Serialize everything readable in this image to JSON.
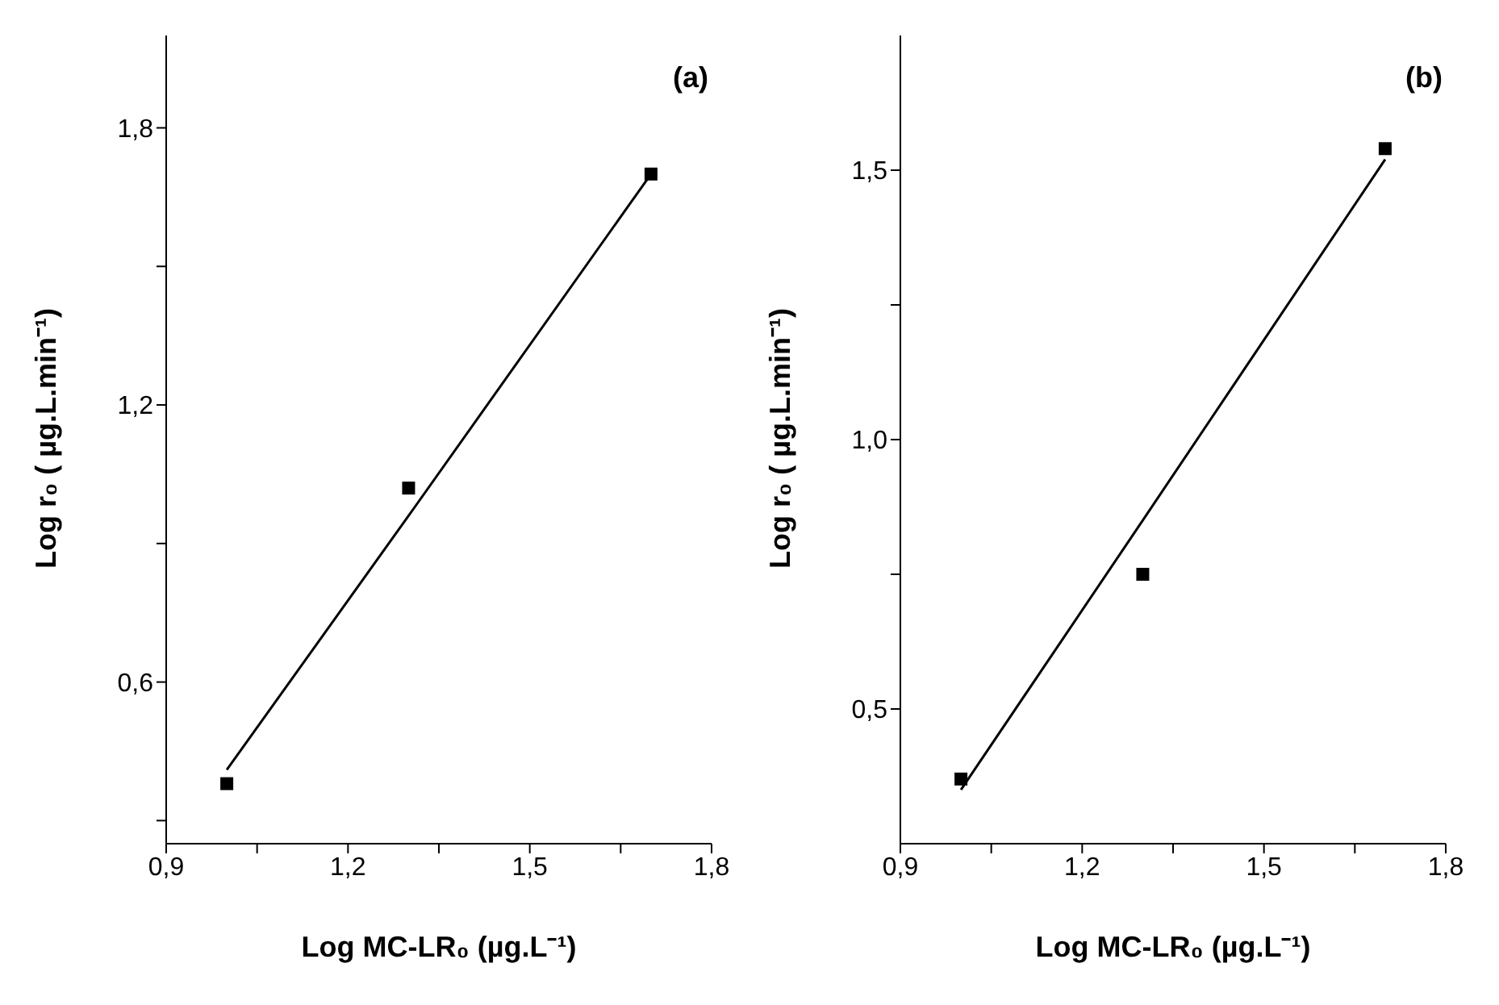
{
  "chart_data": [
    {
      "type": "scatter",
      "xlabel": "Log MC-LR₀ (µg.L⁻¹)",
      "ylabel": "Log r₀ ( µg.L.min⁻¹)",
      "annotations": [
        "(a)"
      ],
      "marker": "square",
      "x": [
        1.0,
        1.3,
        1.7
      ],
      "xlim": [
        0.9,
        1.8
      ],
      "xticks": [
        {
          "value": 0.9,
          "label": "0,9"
        },
        {
          "value": 1.05,
          "label": null
        },
        {
          "value": 1.2,
          "label": "1,2"
        },
        {
          "value": 1.35,
          "label": null
        },
        {
          "value": 1.5,
          "label": "1,5"
        },
        {
          "value": 1.65,
          "label": null
        },
        {
          "value": 1.8,
          "label": "1,8"
        }
      ],
      "ylim": [
        0.25,
        2.0
      ],
      "yticks": [
        {
          "value": 0.3,
          "label": null
        },
        {
          "value": 0.6,
          "label": "0,6"
        },
        {
          "value": 0.9,
          "label": null
        },
        {
          "value": 1.2,
          "label": "1,2"
        },
        {
          "value": 1.5,
          "label": null
        },
        {
          "value": 1.8,
          "label": "1,8"
        }
      ],
      "series": [
        {
          "color": "#000000",
          "values": [
            0.38,
            1.02,
            1.7
          ]
        },
        {
          "type": "line",
          "color": "#000000",
          "values": [
            0.41,
            0.96,
            1.7
          ],
          "marker": "none"
        }
      ]
    },
    {
      "type": "scatter",
      "xlabel": "Log MC-LR₀ (µg.L⁻¹)",
      "ylabel": "Log r₀ ( µg.L.min⁻¹)",
      "annotations": [
        "(b)"
      ],
      "marker": "square",
      "x": [
        1.0,
        1.3,
        1.7
      ],
      "xlim": [
        0.9,
        1.8
      ],
      "xticks": [
        {
          "value": 0.9,
          "label": "0,9"
        },
        {
          "value": 1.05,
          "label": null
        },
        {
          "value": 1.2,
          "label": "1,2"
        },
        {
          "value": 1.35,
          "label": null
        },
        {
          "value": 1.5,
          "label": "1,5"
        },
        {
          "value": 1.65,
          "label": null
        },
        {
          "value": 1.8,
          "label": "1,8"
        }
      ],
      "ylim": [
        0.25,
        1.75
      ],
      "yticks": [
        {
          "value": 0.5,
          "label": "0,5"
        },
        {
          "value": 0.75,
          "label": null
        },
        {
          "value": 1.0,
          "label": "1,0"
        },
        {
          "value": 1.25,
          "label": null
        },
        {
          "value": 1.5,
          "label": "1,5"
        }
      ],
      "series": [
        {
          "color": "#000000",
          "values": [
            0.37,
            0.75,
            1.54
          ]
        },
        {
          "type": "line",
          "color": "#000000",
          "values": [
            0.35,
            0.85,
            1.52
          ],
          "marker": "none"
        }
      ]
    }
  ]
}
